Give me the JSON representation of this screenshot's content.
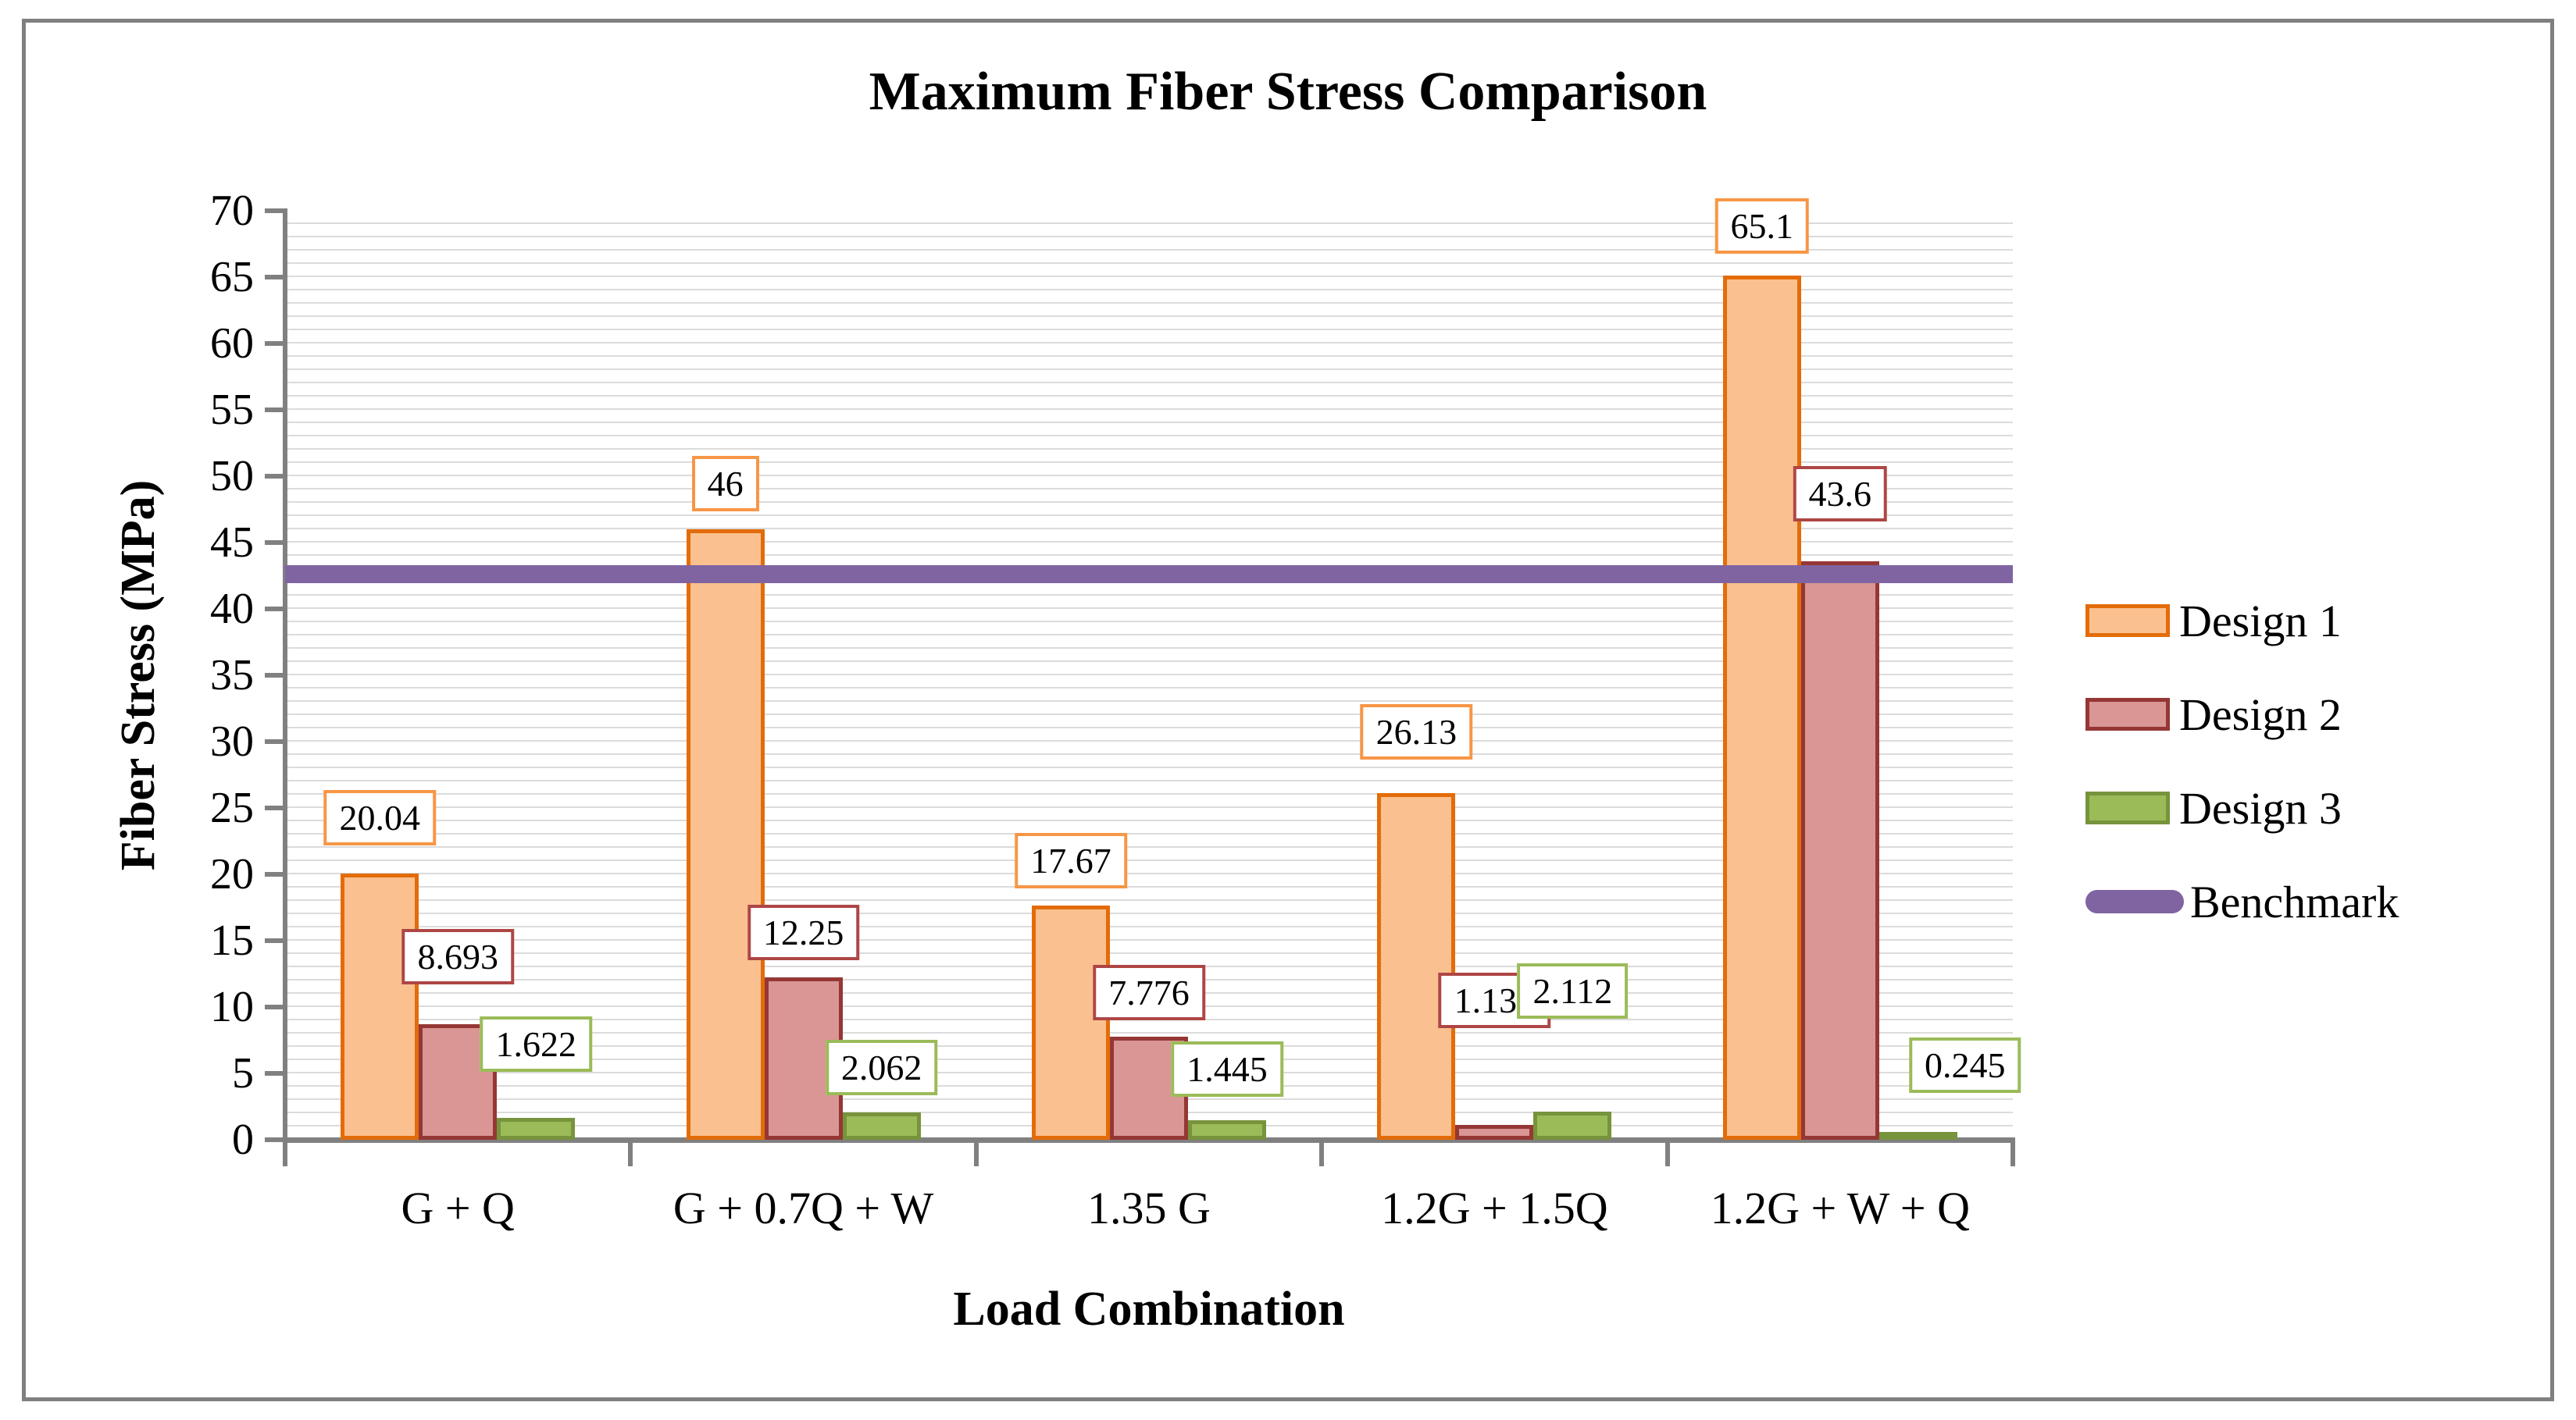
{
  "chart_data": {
    "type": "bar",
    "title": "Maximum Fiber Stress Comparison",
    "xlabel": "Load Combination",
    "ylabel": "Fiber Stress (MPa)",
    "categories": [
      "G + Q",
      "G + 0.7Q + W",
      "1.35 G",
      "1.2G + 1.5Q",
      "1.2G + W + Q"
    ],
    "series": [
      {
        "name": "Design 1",
        "fill": "#FAC090",
        "border": "#E36C09",
        "label_border": "#F79646",
        "values": [
          20.04,
          46,
          17.67,
          26.13,
          65.1
        ],
        "labels": [
          "20.04",
          "46",
          "17.67",
          "26.13",
          "65.1"
        ],
        "label_gaps": [
          36,
          23,
          22,
          43,
          28
        ],
        "label_dx": [
          0,
          0,
          0,
          0,
          0
        ]
      },
      {
        "name": "Design 2",
        "fill": "#D99694",
        "border": "#953735",
        "label_border": "#AE4645",
        "values": [
          8.693,
          12.25,
          7.776,
          1.131,
          43.6
        ],
        "labels": [
          "8.693",
          "12.25",
          "7.776",
          "1.131",
          "43.6"
        ],
        "label_gaps": [
          51,
          22,
          21,
          124,
          51
        ],
        "label_dx": [
          0,
          0,
          0,
          0,
          0
        ]
      },
      {
        "name": "Design 3",
        "fill": "#9BBB59",
        "border": "#77933C",
        "label_border": "#9BBB59",
        "values": [
          1.622,
          2.062,
          1.445,
          2.112,
          0.245
        ],
        "labels": [
          "1.622",
          "2.062",
          "1.445",
          "2.112",
          "0.245"
        ],
        "label_gaps": [
          59,
          22,
          30,
          119,
          56
        ],
        "label_dx": [
          0,
          0,
          0,
          0,
          60
        ]
      }
    ],
    "benchmark": {
      "name": "Benchmark",
      "value": 42.6,
      "color": "#8064A2"
    },
    "ylim": [
      0,
      70
    ],
    "y_ticks": [
      "0",
      "5",
      "10",
      "15",
      "20",
      "25",
      "30",
      "35",
      "40",
      "45",
      "50",
      "55",
      "60",
      "65",
      "70"
    ],
    "grid": "minor horizontal gridlines every 1 MPa, light gray",
    "legend_position": "right",
    "axis_color": "#808080",
    "gridline_color": "#DBDBDB",
    "plot_background": "#FFFFFF"
  }
}
